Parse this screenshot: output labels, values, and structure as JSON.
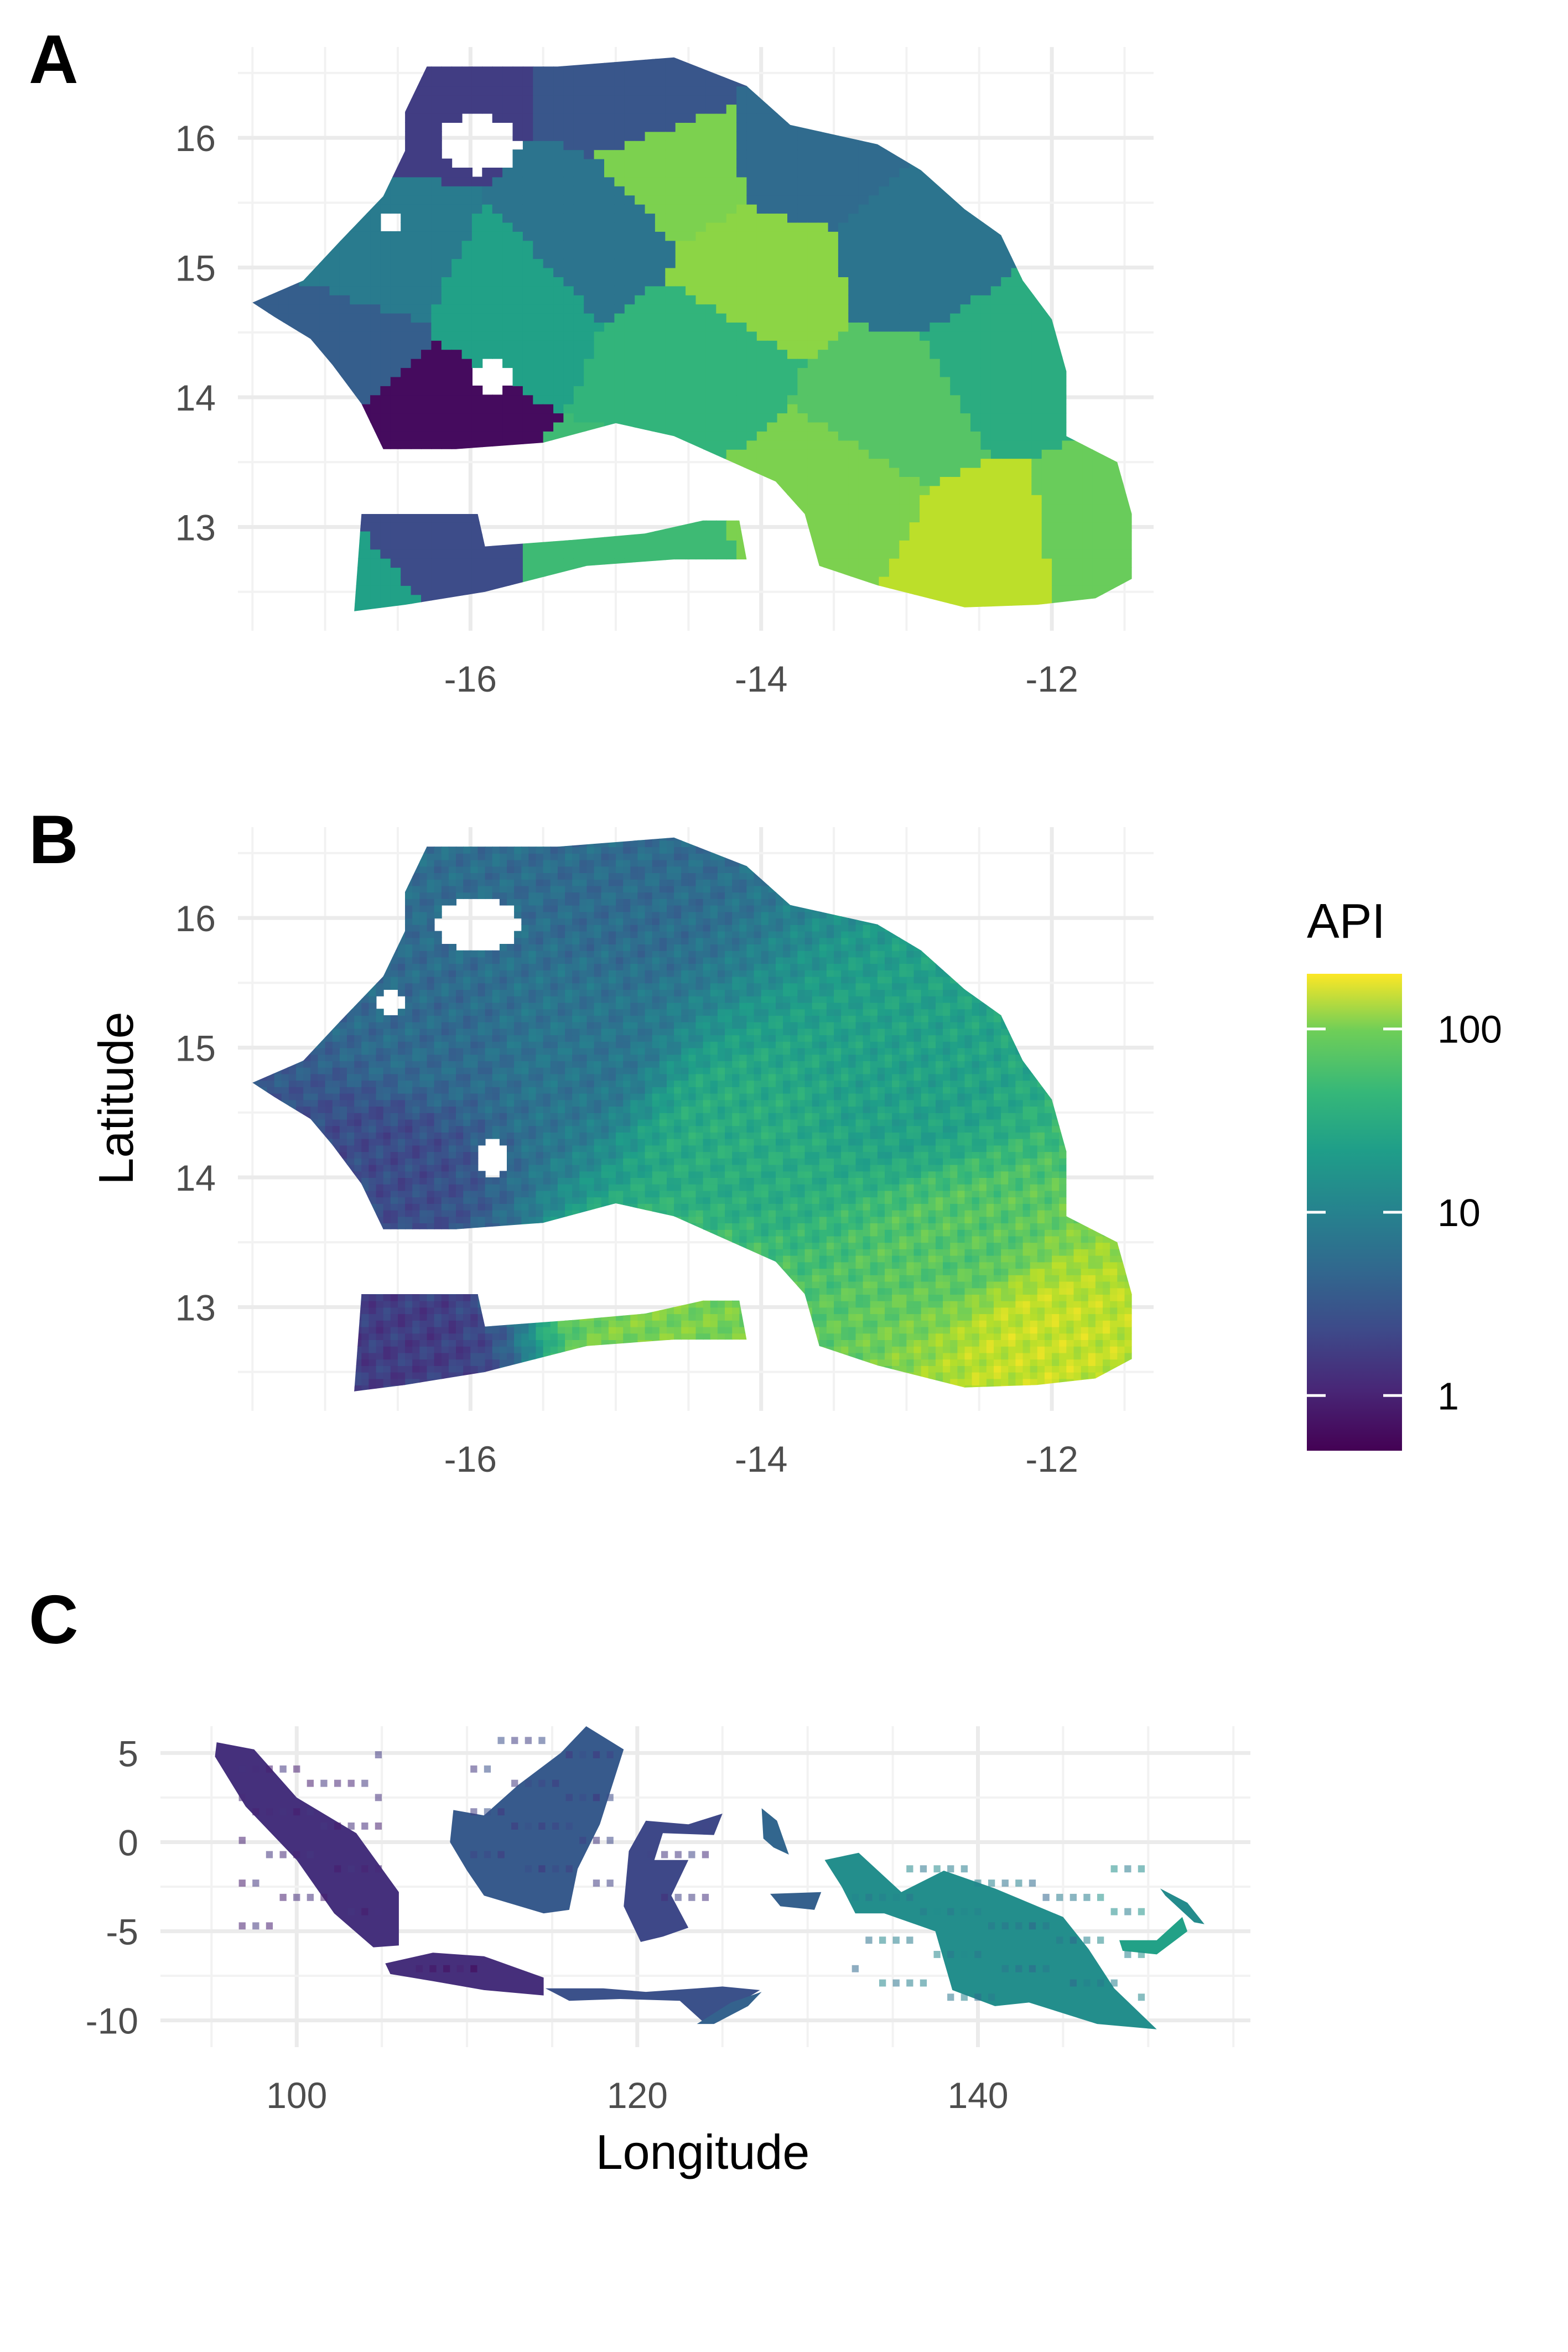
{
  "figure": {
    "panels": [
      {
        "id": "A",
        "label": "A",
        "x_ticks": [
          -16,
          -14,
          -12
        ],
        "y_ticks": [
          13,
          14,
          15,
          16
        ],
        "xlim": [
          -17.6,
          -11.3
        ],
        "ylim": [
          12.2,
          16.7
        ],
        "fill": "district-level (uniform per district)"
      },
      {
        "id": "B",
        "label": "B",
        "x_ticks": [
          -16,
          -14,
          -12
        ],
        "y_ticks": [
          13,
          14,
          15,
          16
        ],
        "xlim": [
          -17.6,
          -11.3
        ],
        "ylim": [
          12.2,
          16.7
        ],
        "ylabel": "Latitude",
        "fill": "pixel-level (continuous surface)"
      },
      {
        "id": "C",
        "label": "C",
        "x_ticks": [
          100,
          120,
          140
        ],
        "y_ticks": [
          5,
          0,
          -5,
          -10
        ],
        "xlim": [
          92,
          156
        ],
        "ylim": [
          -11.5,
          6.5
        ],
        "xlabel": "Longitude",
        "fill": "pixel-level (continuous surface)"
      }
    ],
    "legend": {
      "title": "API",
      "ticks": [
        "100",
        "10",
        "1"
      ],
      "scale": "log10",
      "range": [
        0.5,
        200
      ],
      "palette": [
        "#440154",
        "#3b528b",
        "#21918c",
        "#5ec962",
        "#fde725"
      ]
    }
  },
  "chart_data": {
    "type": "heatmap",
    "variable": "API",
    "color_scale": "viridis",
    "scale": "log10",
    "panels": [
      {
        "label": "A",
        "x_ticks": [
          -16,
          -14,
          -12
        ],
        "y_ticks": [
          13,
          14,
          15,
          16
        ],
        "regions": [
          {
            "lon": -16.3,
            "lat": 16.3,
            "api": 1.5
          },
          {
            "lon": -14.8,
            "lat": 16.3,
            "api": 2.5
          },
          {
            "lon": -13.7,
            "lat": 15.9,
            "api": 4
          },
          {
            "lon": -15.2,
            "lat": 15.3,
            "api": 5
          },
          {
            "lon": -16.5,
            "lat": 15.1,
            "api": 6
          },
          {
            "lon": -16.8,
            "lat": 14.3,
            "api": 3
          },
          {
            "lon": -16.4,
            "lat": 13.9,
            "api": 0.6
          },
          {
            "lon": -15.8,
            "lat": 14.8,
            "api": 15
          },
          {
            "lon": -14.0,
            "lat": 14.9,
            "api": 70
          },
          {
            "lon": -14.6,
            "lat": 15.8,
            "api": 60
          },
          {
            "lon": -12.9,
            "lat": 15.1,
            "api": 5
          },
          {
            "lon": -12.3,
            "lat": 14.3,
            "api": 20
          },
          {
            "lon": -13.1,
            "lat": 13.9,
            "api": 40
          },
          {
            "lon": -14.4,
            "lat": 14.3,
            "api": 25
          },
          {
            "lon": -13.5,
            "lat": 13.3,
            "api": 60
          },
          {
            "lon": -12.4,
            "lat": 12.8,
            "api": 110
          },
          {
            "lon": -11.7,
            "lat": 12.9,
            "api": 50
          },
          {
            "lon": -16.3,
            "lat": 12.8,
            "api": 2
          },
          {
            "lon": -16.7,
            "lat": 12.5,
            "api": 15
          },
          {
            "lon": -15.0,
            "lat": 12.9,
            "api": 30
          }
        ]
      },
      {
        "label": "B",
        "x_ticks": [
          -16,
          -14,
          -12
        ],
        "y_ticks": [
          13,
          14,
          15,
          16
        ],
        "regions": [
          {
            "lon": -15.0,
            "lat": 16.2,
            "api": 4
          },
          {
            "lon": -16.3,
            "lat": 15.0,
            "api": 4
          },
          {
            "lon": -16.6,
            "lat": 14.2,
            "api": 2
          },
          {
            "lon": -15.3,
            "lat": 15.0,
            "api": 5
          },
          {
            "lon": -14.2,
            "lat": 14.3,
            "api": 20
          },
          {
            "lon": -13.0,
            "lat": 14.6,
            "api": 15
          },
          {
            "lon": -12.6,
            "lat": 13.5,
            "api": 40
          },
          {
            "lon": -12.1,
            "lat": 12.8,
            "api": 120
          },
          {
            "lon": -16.5,
            "lat": 12.7,
            "api": 1.5
          },
          {
            "lon": -14.7,
            "lat": 12.9,
            "api": 60
          }
        ]
      },
      {
        "label": "C",
        "x_ticks": [
          100,
          120,
          140
        ],
        "y_ticks": [
          5,
          0,
          -5,
          -10
        ],
        "regions": [
          {
            "lon": 102,
            "lat": -1,
            "api": 1.5
          },
          {
            "lon": 113,
            "lat": 1,
            "api": 2.5
          },
          {
            "lon": 110,
            "lat": -7.5,
            "api": 1
          },
          {
            "lon": 121,
            "lat": -2,
            "api": 2
          },
          {
            "lon": 124,
            "lat": -9,
            "api": 3
          },
          {
            "lon": 138,
            "lat": -4,
            "api": 10
          },
          {
            "lon": 144,
            "lat": -6,
            "api": 6
          },
          {
            "lon": 148,
            "lat": -5,
            "api": 12
          }
        ]
      }
    ],
    "legend": {
      "title": "API",
      "ticks": [
        100,
        10,
        1
      ],
      "range": [
        0.5,
        200
      ]
    }
  }
}
